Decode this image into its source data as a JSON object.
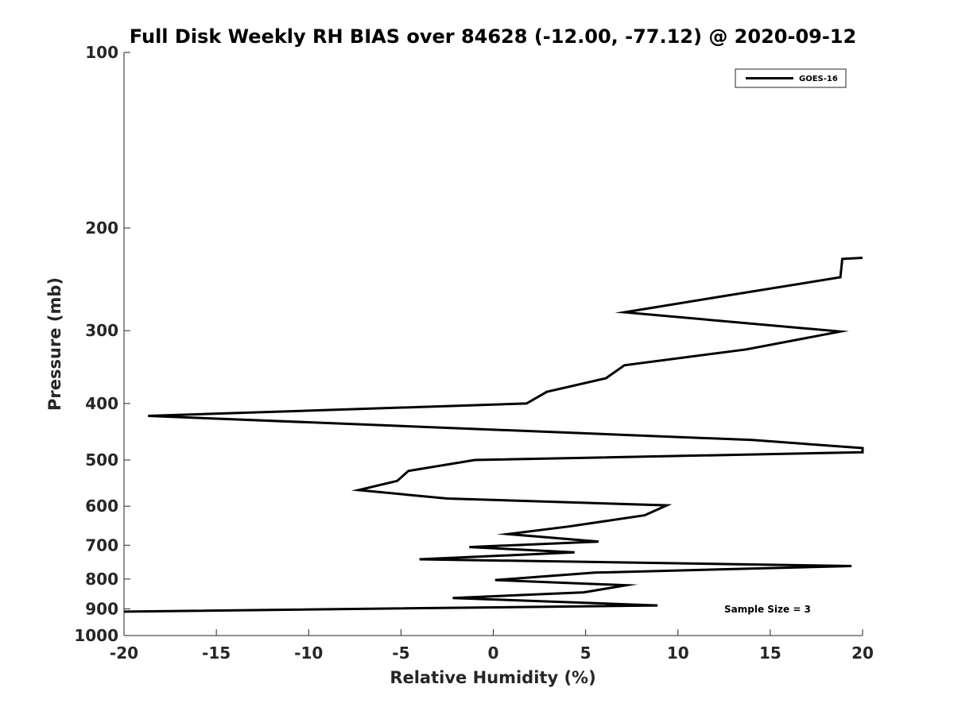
{
  "chart_data": {
    "type": "line",
    "title": "Full Disk Weekly RH BIAS over 84628 (-12.00, -77.12) @ 2020-09-12",
    "xlabel": "Relative Humidity (%)",
    "ylabel": "Pressure (mb)",
    "xlim": [
      -20,
      20
    ],
    "ylim": [
      100,
      1000
    ],
    "y_scale": "log",
    "y_reversed": true,
    "x_ticks": [
      -20,
      -15,
      -10,
      -5,
      0,
      5,
      10,
      15,
      20
    ],
    "x_tick_labels": [
      "-20",
      "-15",
      "-10",
      "-5",
      "0",
      "5",
      "10",
      "15",
      "20"
    ],
    "y_ticks": [
      100,
      200,
      300,
      400,
      500,
      600,
      700,
      800,
      900,
      1000
    ],
    "y_tick_labels": [
      "100",
      "200",
      "300",
      "400",
      "500",
      "600",
      "700",
      "800",
      "900",
      "1000"
    ],
    "grid": false,
    "legend_position": "top-right",
    "annotation": "Sample Size = 3",
    "series": [
      {
        "name": "GOES-16",
        "color": "#000000",
        "points": [
          [
            20.0,
            225
          ],
          [
            18.9,
            226
          ],
          [
            18.8,
            243
          ],
          [
            12.4,
            262
          ],
          [
            7.1,
            279
          ],
          [
            18.8,
            301
          ],
          [
            13.7,
            323
          ],
          [
            7.1,
            344
          ],
          [
            6.1,
            362
          ],
          [
            2.9,
            382
          ],
          [
            1.8,
            400
          ],
          [
            -18.7,
            420
          ],
          [
            14.0,
            462
          ],
          [
            20.0,
            477
          ],
          [
            20.0,
            485
          ],
          [
            -1.0,
            500
          ],
          [
            -4.6,
            522
          ],
          [
            -5.2,
            543
          ],
          [
            -7.3,
            563
          ],
          [
            -2.5,
            582
          ],
          [
            9.4,
            598
          ],
          [
            8.2,
            622
          ],
          [
            4.1,
            650
          ],
          [
            0.8,
            670
          ],
          [
            5.7,
            690
          ],
          [
            -1.3,
            705
          ],
          [
            4.4,
            720
          ],
          [
            -4.0,
            740
          ],
          [
            19.4,
            760
          ],
          [
            5.5,
            780
          ],
          [
            0.1,
            803
          ],
          [
            7.2,
            820
          ],
          [
            4.9,
            843
          ],
          [
            -2.2,
            862
          ],
          [
            8.9,
            888
          ],
          [
            -20.0,
            910
          ]
        ]
      }
    ]
  }
}
